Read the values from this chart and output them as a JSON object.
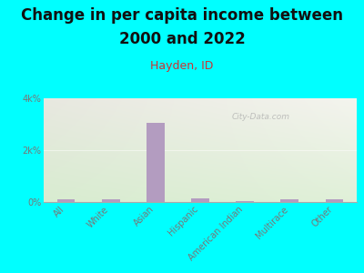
{
  "title_line1": "Change in per capita income between",
  "title_line2": "2000 and 2022",
  "subtitle": "Hayden, ID",
  "categories": [
    "All",
    "White",
    "Asian",
    "Hispanic",
    "American Indian",
    "Multirace",
    "Other"
  ],
  "values": [
    100,
    90,
    3050,
    130,
    35,
    90,
    100
  ],
  "bar_color": "#b39cc0",
  "background_color": "#00ffff",
  "grad_color_topleft": "#e8e8e0",
  "grad_color_bottomright": "#d8ecd0",
  "title_color": "#111111",
  "subtitle_color": "#cc3333",
  "axis_tick_color": "#777777",
  "ylim": [
    0,
    4000
  ],
  "yticks": [
    0,
    2000,
    4000
  ],
  "ytick_labels": [
    "0%",
    "2k%",
    "4k%"
  ],
  "watermark": "City-Data.com",
  "title_fontsize": 12,
  "subtitle_fontsize": 9,
  "tick_fontsize": 7,
  "bar_width": 0.4
}
